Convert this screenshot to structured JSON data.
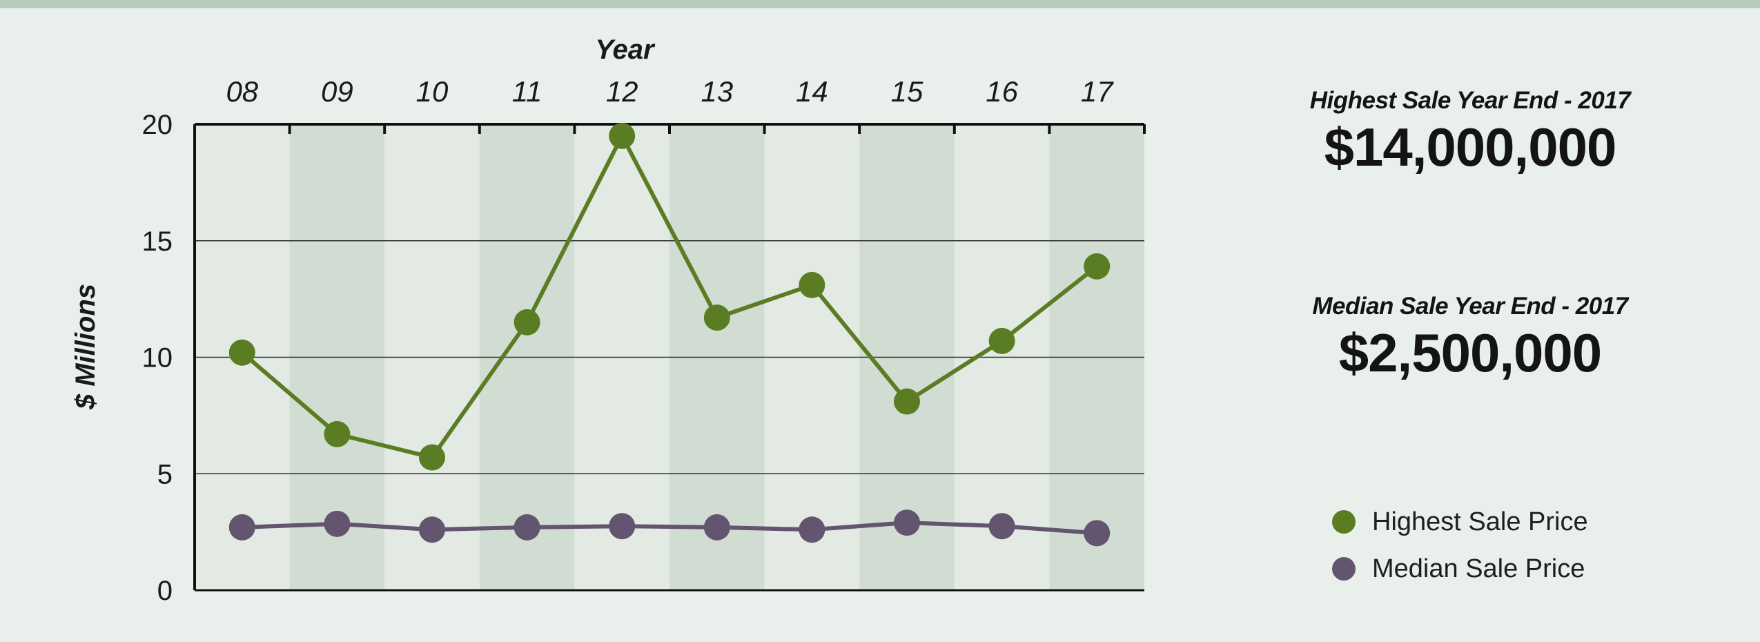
{
  "chart_data": {
    "type": "line",
    "x_title": "Year",
    "y_title": "$ Millions",
    "categories": [
      "08",
      "09",
      "10",
      "11",
      "12",
      "13",
      "14",
      "15",
      "16",
      "17"
    ],
    "ylim": [
      0,
      20
    ],
    "yticks": [
      0,
      5,
      10,
      15,
      20
    ],
    "grid": "horizontal",
    "series": [
      {
        "name": "Highest Sale Price",
        "color": "#5a7d24",
        "values": [
          10.2,
          6.7,
          5.7,
          11.5,
          19.5,
          11.7,
          13.1,
          8.1,
          10.7,
          13.9
        ]
      },
      {
        "name": "Median Sale Price",
        "color": "#63546f",
        "values": [
          2.7,
          2.85,
          2.6,
          2.7,
          2.75,
          2.7,
          2.6,
          2.9,
          2.75,
          2.45
        ]
      }
    ]
  },
  "stats": {
    "highest_label": "Highest Sale Year End - 2017",
    "highest_value": "$14,000,000",
    "median_label": "Median Sale Year End - 2017",
    "median_value": "$2,500,000"
  },
  "legend": {
    "items": [
      {
        "label": "Highest Sale Price",
        "color": "#5a7d24"
      },
      {
        "label": "Median Sale Price",
        "color": "#63546f"
      }
    ]
  },
  "colors": {
    "background": "#e9efea",
    "band_light": "#e2eae3",
    "band_dark": "#d1ddd3",
    "top_bar": "#b6cbb9"
  }
}
